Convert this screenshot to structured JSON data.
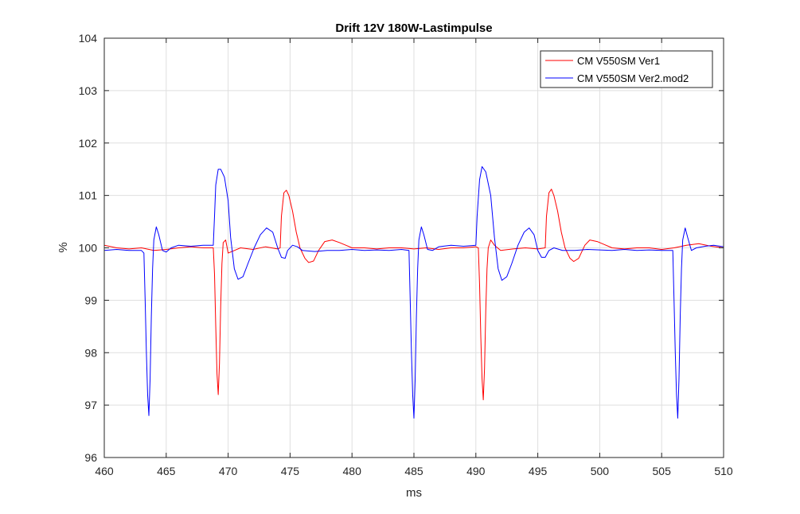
{
  "chart_data": {
    "type": "line",
    "title": "Drift 12V 180W-Lastimpulse",
    "xlabel": "ms",
    "ylabel": "%",
    "xlim": [
      460,
      510
    ],
    "ylim": [
      96,
      104
    ],
    "xticks": [
      460,
      465,
      470,
      475,
      480,
      485,
      490,
      495,
      500,
      505,
      510
    ],
    "yticks": [
      96,
      97,
      98,
      99,
      100,
      101,
      102,
      103,
      104
    ],
    "grid": true,
    "legend_position": "top-right",
    "series": [
      {
        "name": "CM V550SM Ver1",
        "color": "#ff0000",
        "points": [
          [
            460,
            100.05
          ],
          [
            461,
            100.0
          ],
          [
            462,
            99.98
          ],
          [
            463,
            100.0
          ],
          [
            464,
            99.95
          ],
          [
            465,
            99.97
          ],
          [
            466,
            100.0
          ],
          [
            467,
            100.02
          ],
          [
            468,
            100.0
          ],
          [
            468.8,
            100.0
          ],
          [
            468.9,
            99.5
          ],
          [
            469.0,
            98.5
          ],
          [
            469.1,
            97.6
          ],
          [
            469.2,
            97.2
          ],
          [
            469.3,
            97.8
          ],
          [
            469.4,
            98.9
          ],
          [
            469.5,
            99.7
          ],
          [
            469.6,
            100.1
          ],
          [
            469.8,
            100.15
          ],
          [
            470.0,
            99.9
          ],
          [
            470.5,
            99.95
          ],
          [
            471,
            100.0
          ],
          [
            472,
            99.97
          ],
          [
            473,
            100.02
          ],
          [
            474,
            99.98
          ],
          [
            474.2,
            100.0
          ],
          [
            474.3,
            100.6
          ],
          [
            474.5,
            101.05
          ],
          [
            474.7,
            101.1
          ],
          [
            474.9,
            101.0
          ],
          [
            475.2,
            100.7
          ],
          [
            475.5,
            100.3
          ],
          [
            475.8,
            100.0
          ],
          [
            476.2,
            99.8
          ],
          [
            476.5,
            99.72
          ],
          [
            476.9,
            99.75
          ],
          [
            477.3,
            99.95
          ],
          [
            477.8,
            100.12
          ],
          [
            478.4,
            100.15
          ],
          [
            479.0,
            100.1
          ],
          [
            479.5,
            100.05
          ],
          [
            480,
            100.0
          ],
          [
            481,
            100.0
          ],
          [
            482,
            99.98
          ],
          [
            483,
            100.0
          ],
          [
            484,
            100.0
          ],
          [
            485,
            99.98
          ],
          [
            486,
            100.0
          ],
          [
            487,
            99.97
          ],
          [
            488,
            100.0
          ],
          [
            489,
            100.0
          ],
          [
            490,
            100.02
          ],
          [
            490.2,
            100.0
          ],
          [
            490.3,
            99.3
          ],
          [
            490.4,
            98.3
          ],
          [
            490.5,
            97.5
          ],
          [
            490.6,
            97.1
          ],
          [
            490.7,
            97.7
          ],
          [
            490.8,
            98.8
          ],
          [
            490.9,
            99.6
          ],
          [
            491.0,
            100.0
          ],
          [
            491.2,
            100.15
          ],
          [
            491.5,
            100.05
          ],
          [
            492,
            99.95
          ],
          [
            493,
            99.98
          ],
          [
            494,
            100.0
          ],
          [
            495,
            99.98
          ],
          [
            495.6,
            100.0
          ],
          [
            495.7,
            100.6
          ],
          [
            495.9,
            101.05
          ],
          [
            496.1,
            101.12
          ],
          [
            496.3,
            101.0
          ],
          [
            496.6,
            100.7
          ],
          [
            496.9,
            100.3
          ],
          [
            497.2,
            100.0
          ],
          [
            497.6,
            99.8
          ],
          [
            497.9,
            99.74
          ],
          [
            498.3,
            99.8
          ],
          [
            498.8,
            100.05
          ],
          [
            499.2,
            100.15
          ],
          [
            499.8,
            100.12
          ],
          [
            500.5,
            100.05
          ],
          [
            501,
            100.0
          ],
          [
            502,
            99.98
          ],
          [
            503,
            100.0
          ],
          [
            504,
            100.0
          ],
          [
            505,
            99.97
          ],
          [
            506,
            100.0
          ],
          [
            507,
            100.05
          ],
          [
            508,
            100.08
          ],
          [
            509,
            100.03
          ],
          [
            510,
            100.0
          ]
        ]
      },
      {
        "name": "CM V550SM Ver2.mod2",
        "color": "#0000ff",
        "points": [
          [
            460,
            99.95
          ],
          [
            461,
            99.97
          ],
          [
            462,
            99.95
          ],
          [
            463,
            99.95
          ],
          [
            463.2,
            99.9
          ],
          [
            463.3,
            99.0
          ],
          [
            463.4,
            98.0
          ],
          [
            463.5,
            97.2
          ],
          [
            463.6,
            96.8
          ],
          [
            463.7,
            97.5
          ],
          [
            463.8,
            98.7
          ],
          [
            463.9,
            99.6
          ],
          [
            464.0,
            100.15
          ],
          [
            464.2,
            100.4
          ],
          [
            464.4,
            100.25
          ],
          [
            464.7,
            99.95
          ],
          [
            465.0,
            99.92
          ],
          [
            465.4,
            100.0
          ],
          [
            466,
            100.05
          ],
          [
            467,
            100.03
          ],
          [
            468,
            100.05
          ],
          [
            468.8,
            100.05
          ],
          [
            468.9,
            100.6
          ],
          [
            469.0,
            101.2
          ],
          [
            469.2,
            101.5
          ],
          [
            469.4,
            101.5
          ],
          [
            469.7,
            101.35
          ],
          [
            470.0,
            100.9
          ],
          [
            470.2,
            100.2
          ],
          [
            470.5,
            99.6
          ],
          [
            470.8,
            99.4
          ],
          [
            471.2,
            99.45
          ],
          [
            471.6,
            99.7
          ],
          [
            472.1,
            100.0
          ],
          [
            472.6,
            100.25
          ],
          [
            473.1,
            100.38
          ],
          [
            473.6,
            100.3
          ],
          [
            474.0,
            100.0
          ],
          [
            474.3,
            99.82
          ],
          [
            474.6,
            99.8
          ],
          [
            474.8,
            99.95
          ],
          [
            475.2,
            100.05
          ],
          [
            475.6,
            100.02
          ],
          [
            476,
            99.95
          ],
          [
            477,
            99.93
          ],
          [
            478,
            99.95
          ],
          [
            479,
            99.95
          ],
          [
            480,
            99.97
          ],
          [
            481,
            99.95
          ],
          [
            482,
            99.96
          ],
          [
            483,
            99.95
          ],
          [
            484,
            99.97
          ],
          [
            484.6,
            99.95
          ],
          [
            484.7,
            99.0
          ],
          [
            484.8,
            98.0
          ],
          [
            484.9,
            97.2
          ],
          [
            485.0,
            96.75
          ],
          [
            485.1,
            97.5
          ],
          [
            485.2,
            98.7
          ],
          [
            485.3,
            99.6
          ],
          [
            485.4,
            100.15
          ],
          [
            485.6,
            100.4
          ],
          [
            485.8,
            100.25
          ],
          [
            486.1,
            99.97
          ],
          [
            486.5,
            99.95
          ],
          [
            487,
            100.02
          ],
          [
            488,
            100.05
          ],
          [
            489,
            100.03
          ],
          [
            490.0,
            100.05
          ],
          [
            490.1,
            100.6
          ],
          [
            490.3,
            101.3
          ],
          [
            490.5,
            101.55
          ],
          [
            490.8,
            101.45
          ],
          [
            491.2,
            101.0
          ],
          [
            491.5,
            100.2
          ],
          [
            491.8,
            99.6
          ],
          [
            492.1,
            99.38
          ],
          [
            492.5,
            99.45
          ],
          [
            492.9,
            99.7
          ],
          [
            493.4,
            100.05
          ],
          [
            493.9,
            100.3
          ],
          [
            494.3,
            100.38
          ],
          [
            494.7,
            100.25
          ],
          [
            495.0,
            99.95
          ],
          [
            495.3,
            99.82
          ],
          [
            495.6,
            99.82
          ],
          [
            495.9,
            99.95
          ],
          [
            496.3,
            100.0
          ],
          [
            497,
            99.95
          ],
          [
            498,
            99.95
          ],
          [
            499,
            99.97
          ],
          [
            500,
            99.96
          ],
          [
            501,
            99.95
          ],
          [
            502,
            99.97
          ],
          [
            503,
            99.95
          ],
          [
            504,
            99.96
          ],
          [
            505,
            99.95
          ],
          [
            505.9,
            99.95
          ],
          [
            506.0,
            99.0
          ],
          [
            506.1,
            98.0
          ],
          [
            506.2,
            97.2
          ],
          [
            506.3,
            96.75
          ],
          [
            506.4,
            97.5
          ],
          [
            506.5,
            98.7
          ],
          [
            506.6,
            99.6
          ],
          [
            506.7,
            100.15
          ],
          [
            506.9,
            100.38
          ],
          [
            507.1,
            100.2
          ],
          [
            507.4,
            99.95
          ],
          [
            507.8,
            100.0
          ],
          [
            508.5,
            100.03
          ],
          [
            509.2,
            100.05
          ],
          [
            510,
            100.02
          ]
        ]
      }
    ]
  }
}
